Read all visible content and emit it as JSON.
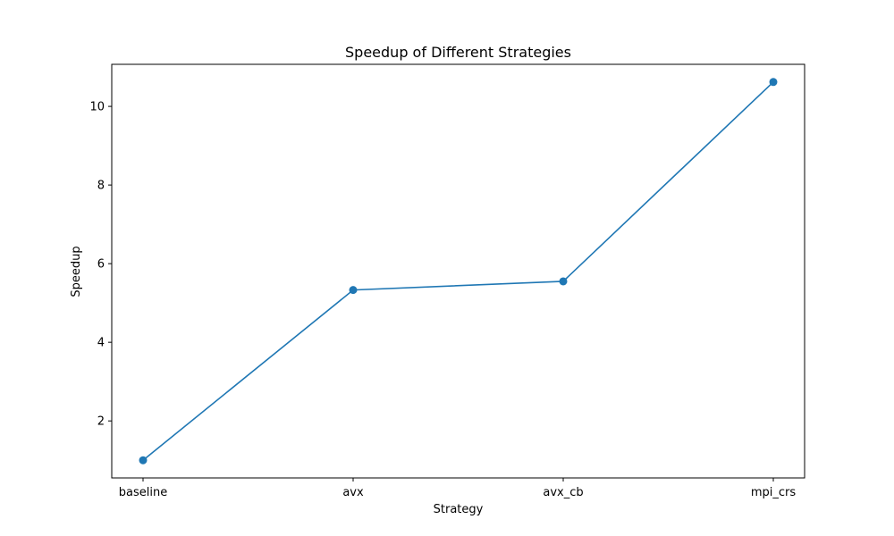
{
  "chart_data": {
    "type": "line",
    "title": "Speedup of Different Strategies",
    "xlabel": "Strategy",
    "ylabel": "Speedup",
    "categories": [
      "baseline",
      "avx",
      "avx_cb",
      "mpi_crs"
    ],
    "series": [
      {
        "values": [
          1.0,
          5.33,
          5.55,
          10.62
        ],
        "color": "#1f77b4"
      }
    ],
    "ylim": [
      0.55,
      11.07
    ],
    "yticks": [
      2,
      4,
      6,
      8,
      10
    ],
    "grid": false,
    "markers": "circle"
  }
}
